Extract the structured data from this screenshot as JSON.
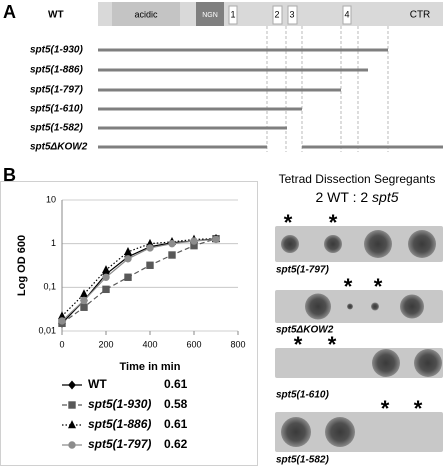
{
  "panel_a": {
    "label": "A",
    "wt": "WT",
    "domains": {
      "acidic": "acidic",
      "ngn": "NGN",
      "kow1": "1",
      "kow2": "2",
      "kow3": "3",
      "kow4": "4",
      "ctr": "CTR"
    },
    "constructs": [
      "spt5(1-930)",
      "spt5(1-886)",
      "spt5(1-797)",
      "spt5(1-610)",
      "spt5(1-582)",
      "spt5ΔKOW2"
    ]
  },
  "panel_b": {
    "label": "B"
  },
  "chart_data": {
    "type": "line",
    "ylabel": "Log OD 600",
    "xlabel": "Time in min",
    "x": [
      0,
      100,
      200,
      300,
      400,
      500,
      600,
      700
    ],
    "xlim": [
      0,
      800
    ],
    "xticks": [
      0,
      200,
      400,
      600,
      800
    ],
    "ylog": true,
    "ylim": [
      0.01,
      10
    ],
    "yticks": [
      {
        "value": 0.01,
        "label": "0,01"
      },
      {
        "value": 0.1,
        "label": "0,1"
      },
      1,
      10
    ],
    "grid": true,
    "series": [
      {
        "name": "WT",
        "color": "#000000",
        "marker": "diamond",
        "dash": "solid",
        "rate": 0.61,
        "values": [
          0.015,
          0.05,
          0.2,
          0.5,
          0.85,
          1.05,
          1.15,
          1.3
        ]
      },
      {
        "name": "spt5(1-930)",
        "color": "#595959",
        "marker": "square",
        "dash": "dashed",
        "rate": 0.58,
        "values": [
          0.015,
          0.035,
          0.09,
          0.17,
          0.32,
          0.55,
          0.9,
          1.3
        ]
      },
      {
        "name": "spt5(1-886)",
        "color": "#000000",
        "marker": "triangle",
        "dash": "dotted",
        "rate": 0.61,
        "values": [
          0.022,
          0.07,
          0.25,
          0.65,
          1.0,
          1.1,
          1.25,
          1.3
        ]
      },
      {
        "name": "spt5(1-797)",
        "color": "#8c8c8c",
        "marker": "circle",
        "dash": "solid",
        "rate": 0.62,
        "values": [
          0.017,
          0.05,
          0.17,
          0.45,
          0.8,
          1.0,
          1.15,
          1.25
        ]
      }
    ]
  },
  "tetrad": {
    "title": "Tetrad Dissection Segregants",
    "subtitle_prefix": "2 WT : 2 ",
    "subtitle_italic": "spt5",
    "plates": [
      {
        "label": "spt5(1-797)",
        "asterisks": [
          "*",
          "*"
        ]
      },
      {
        "label": "spt5ΔKOW2",
        "asterisks": [
          "*",
          "*"
        ]
      },
      {
        "label": "spt5(1-610)",
        "asterisks": [
          "*",
          "*"
        ]
      },
      {
        "label": "spt5(1-582)",
        "asterisks": [
          "*",
          "*"
        ]
      }
    ]
  }
}
